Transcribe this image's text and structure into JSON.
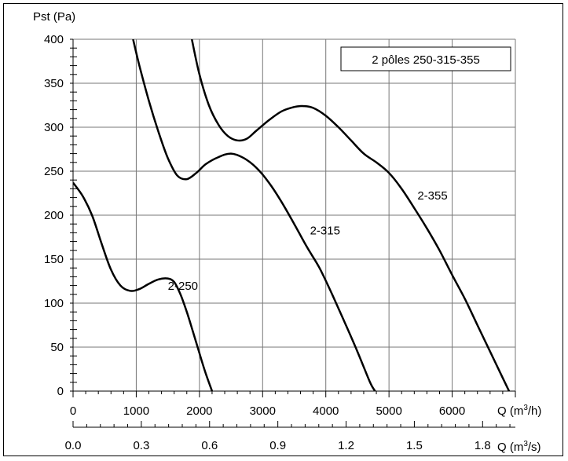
{
  "chart_data": {
    "type": "line",
    "title": "",
    "ylabel": "Pst (Pa)",
    "legend_box": "2 pôles 250-315-355",
    "grid": true,
    "x_axis_top": {
      "label_prefix": "Q (m",
      "label_sup": "3",
      "label_suffix": "/h)",
      "range": [
        0,
        7000
      ],
      "ticks": [
        0,
        1000,
        2000,
        3000,
        4000,
        5000,
        6000
      ],
      "tick_labels": [
        "0",
        "1000",
        "2000",
        "3000",
        "4000",
        "5000",
        "6000"
      ]
    },
    "x_axis_bottom": {
      "label_prefix": "Q (m",
      "label_sup": "3",
      "label_suffix": "/s)",
      "range": [
        0,
        1.944
      ],
      "ticks": [
        0.0,
        0.3,
        0.6,
        0.9,
        1.2,
        1.5,
        1.8
      ],
      "tick_labels": [
        "0.0",
        "0.3",
        "0.6",
        "0.9",
        "1.2",
        "1.5",
        "1.8"
      ]
    },
    "y_axis": {
      "range": [
        0,
        400
      ],
      "ticks": [
        0,
        50,
        100,
        150,
        200,
        250,
        300,
        350,
        400
      ],
      "tick_labels": [
        "0",
        "50",
        "100",
        "150",
        "200",
        "250",
        "300",
        "350",
        "400"
      ]
    },
    "series": [
      {
        "name": "2-250",
        "label_at": [
          1500,
          115
        ],
        "points": [
          [
            0,
            237
          ],
          [
            150,
            222
          ],
          [
            300,
            200
          ],
          [
            450,
            168
          ],
          [
            600,
            138
          ],
          [
            750,
            120
          ],
          [
            900,
            114
          ],
          [
            1050,
            116
          ],
          [
            1200,
            122
          ],
          [
            1350,
            127
          ],
          [
            1500,
            128
          ],
          [
            1600,
            124
          ],
          [
            1700,
            110
          ],
          [
            1800,
            90
          ],
          [
            1900,
            67
          ],
          [
            2000,
            43
          ],
          [
            2100,
            20
          ],
          [
            2200,
            0
          ]
        ]
      },
      {
        "name": "2-315",
        "label_at": [
          3750,
          178
        ],
        "points": [
          [
            950,
            400
          ],
          [
            1050,
            370
          ],
          [
            1200,
            330
          ],
          [
            1350,
            295
          ],
          [
            1500,
            265
          ],
          [
            1650,
            245
          ],
          [
            1800,
            241
          ],
          [
            1950,
            248
          ],
          [
            2100,
            258
          ],
          [
            2300,
            266
          ],
          [
            2500,
            270
          ],
          [
            2700,
            265
          ],
          [
            2900,
            254
          ],
          [
            3100,
            237
          ],
          [
            3300,
            215
          ],
          [
            3500,
            190
          ],
          [
            3700,
            164
          ],
          [
            3900,
            140
          ],
          [
            4100,
            110
          ],
          [
            4300,
            78
          ],
          [
            4500,
            45
          ],
          [
            4700,
            10
          ],
          [
            4780,
            0
          ]
        ]
      },
      {
        "name": "2-355",
        "label_at": [
          5450,
          218
        ],
        "points": [
          [
            1880,
            400
          ],
          [
            2000,
            360
          ],
          [
            2150,
            325
          ],
          [
            2300,
            303
          ],
          [
            2450,
            290
          ],
          [
            2600,
            285
          ],
          [
            2750,
            287
          ],
          [
            2900,
            296
          ],
          [
            3100,
            308
          ],
          [
            3300,
            318
          ],
          [
            3500,
            323
          ],
          [
            3650,
            324
          ],
          [
            3800,
            322
          ],
          [
            4000,
            313
          ],
          [
            4200,
            300
          ],
          [
            4400,
            285
          ],
          [
            4600,
            270
          ],
          [
            4800,
            260
          ],
          [
            5000,
            248
          ],
          [
            5200,
            230
          ],
          [
            5400,
            208
          ],
          [
            5600,
            185
          ],
          [
            5800,
            160
          ],
          [
            6000,
            132
          ],
          [
            6200,
            105
          ],
          [
            6400,
            75
          ],
          [
            6600,
            45
          ],
          [
            6800,
            15
          ],
          [
            6900,
            0
          ]
        ]
      }
    ]
  }
}
